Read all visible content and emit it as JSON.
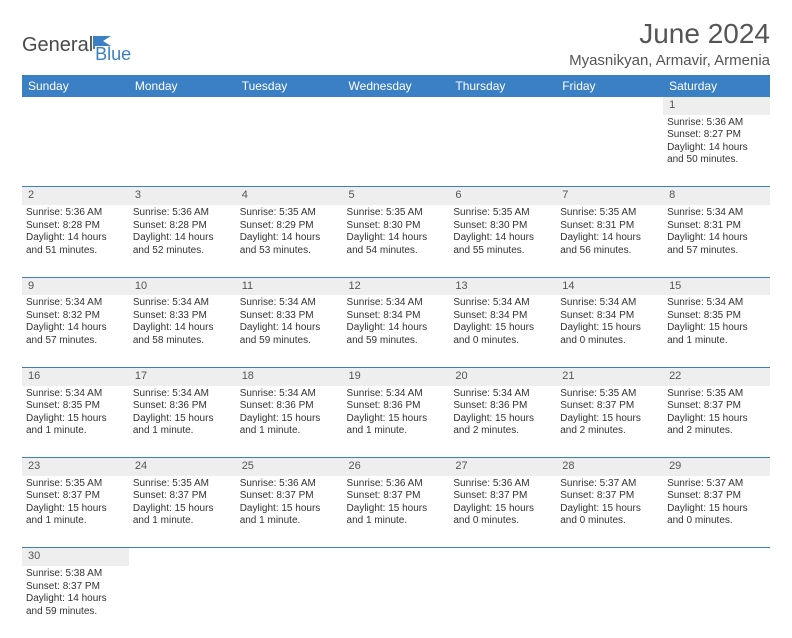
{
  "logo": {
    "text1": "General",
    "text2": "Blue"
  },
  "title": "June 2024",
  "location": "Myasnikyan, Armavir, Armenia",
  "colors": {
    "header_bg": "#3b7fc4",
    "header_fg": "#ffffff",
    "daynum_bg": "#eeeeee",
    "rule": "#3b7fc4",
    "text": "#333333"
  },
  "weekdays": [
    "Sunday",
    "Monday",
    "Tuesday",
    "Wednesday",
    "Thursday",
    "Friday",
    "Saturday"
  ],
  "weeks": [
    [
      null,
      null,
      null,
      null,
      null,
      null,
      {
        "n": "1",
        "sr": "5:36 AM",
        "ss": "8:27 PM",
        "dl": "14 hours and 50 minutes."
      }
    ],
    [
      {
        "n": "2",
        "sr": "5:36 AM",
        "ss": "8:28 PM",
        "dl": "14 hours and 51 minutes."
      },
      {
        "n": "3",
        "sr": "5:36 AM",
        "ss": "8:28 PM",
        "dl": "14 hours and 52 minutes."
      },
      {
        "n": "4",
        "sr": "5:35 AM",
        "ss": "8:29 PM",
        "dl": "14 hours and 53 minutes."
      },
      {
        "n": "5",
        "sr": "5:35 AM",
        "ss": "8:30 PM",
        "dl": "14 hours and 54 minutes."
      },
      {
        "n": "6",
        "sr": "5:35 AM",
        "ss": "8:30 PM",
        "dl": "14 hours and 55 minutes."
      },
      {
        "n": "7",
        "sr": "5:35 AM",
        "ss": "8:31 PM",
        "dl": "14 hours and 56 minutes."
      },
      {
        "n": "8",
        "sr": "5:34 AM",
        "ss": "8:31 PM",
        "dl": "14 hours and 57 minutes."
      }
    ],
    [
      {
        "n": "9",
        "sr": "5:34 AM",
        "ss": "8:32 PM",
        "dl": "14 hours and 57 minutes."
      },
      {
        "n": "10",
        "sr": "5:34 AM",
        "ss": "8:33 PM",
        "dl": "14 hours and 58 minutes."
      },
      {
        "n": "11",
        "sr": "5:34 AM",
        "ss": "8:33 PM",
        "dl": "14 hours and 59 minutes."
      },
      {
        "n": "12",
        "sr": "5:34 AM",
        "ss": "8:34 PM",
        "dl": "14 hours and 59 minutes."
      },
      {
        "n": "13",
        "sr": "5:34 AM",
        "ss": "8:34 PM",
        "dl": "15 hours and 0 minutes."
      },
      {
        "n": "14",
        "sr": "5:34 AM",
        "ss": "8:34 PM",
        "dl": "15 hours and 0 minutes."
      },
      {
        "n": "15",
        "sr": "5:34 AM",
        "ss": "8:35 PM",
        "dl": "15 hours and 1 minute."
      }
    ],
    [
      {
        "n": "16",
        "sr": "5:34 AM",
        "ss": "8:35 PM",
        "dl": "15 hours and 1 minute."
      },
      {
        "n": "17",
        "sr": "5:34 AM",
        "ss": "8:36 PM",
        "dl": "15 hours and 1 minute."
      },
      {
        "n": "18",
        "sr": "5:34 AM",
        "ss": "8:36 PM",
        "dl": "15 hours and 1 minute."
      },
      {
        "n": "19",
        "sr": "5:34 AM",
        "ss": "8:36 PM",
        "dl": "15 hours and 1 minute."
      },
      {
        "n": "20",
        "sr": "5:34 AM",
        "ss": "8:36 PM",
        "dl": "15 hours and 2 minutes."
      },
      {
        "n": "21",
        "sr": "5:35 AM",
        "ss": "8:37 PM",
        "dl": "15 hours and 2 minutes."
      },
      {
        "n": "22",
        "sr": "5:35 AM",
        "ss": "8:37 PM",
        "dl": "15 hours and 2 minutes."
      }
    ],
    [
      {
        "n": "23",
        "sr": "5:35 AM",
        "ss": "8:37 PM",
        "dl": "15 hours and 1 minute."
      },
      {
        "n": "24",
        "sr": "5:35 AM",
        "ss": "8:37 PM",
        "dl": "15 hours and 1 minute."
      },
      {
        "n": "25",
        "sr": "5:36 AM",
        "ss": "8:37 PM",
        "dl": "15 hours and 1 minute."
      },
      {
        "n": "26",
        "sr": "5:36 AM",
        "ss": "8:37 PM",
        "dl": "15 hours and 1 minute."
      },
      {
        "n": "27",
        "sr": "5:36 AM",
        "ss": "8:37 PM",
        "dl": "15 hours and 0 minutes."
      },
      {
        "n": "28",
        "sr": "5:37 AM",
        "ss": "8:37 PM",
        "dl": "15 hours and 0 minutes."
      },
      {
        "n": "29",
        "sr": "5:37 AM",
        "ss": "8:37 PM",
        "dl": "15 hours and 0 minutes."
      }
    ],
    [
      {
        "n": "30",
        "sr": "5:38 AM",
        "ss": "8:37 PM",
        "dl": "14 hours and 59 minutes."
      },
      null,
      null,
      null,
      null,
      null,
      null
    ]
  ],
  "labels": {
    "sunrise": "Sunrise:",
    "sunset": "Sunset:",
    "daylight": "Daylight:"
  }
}
